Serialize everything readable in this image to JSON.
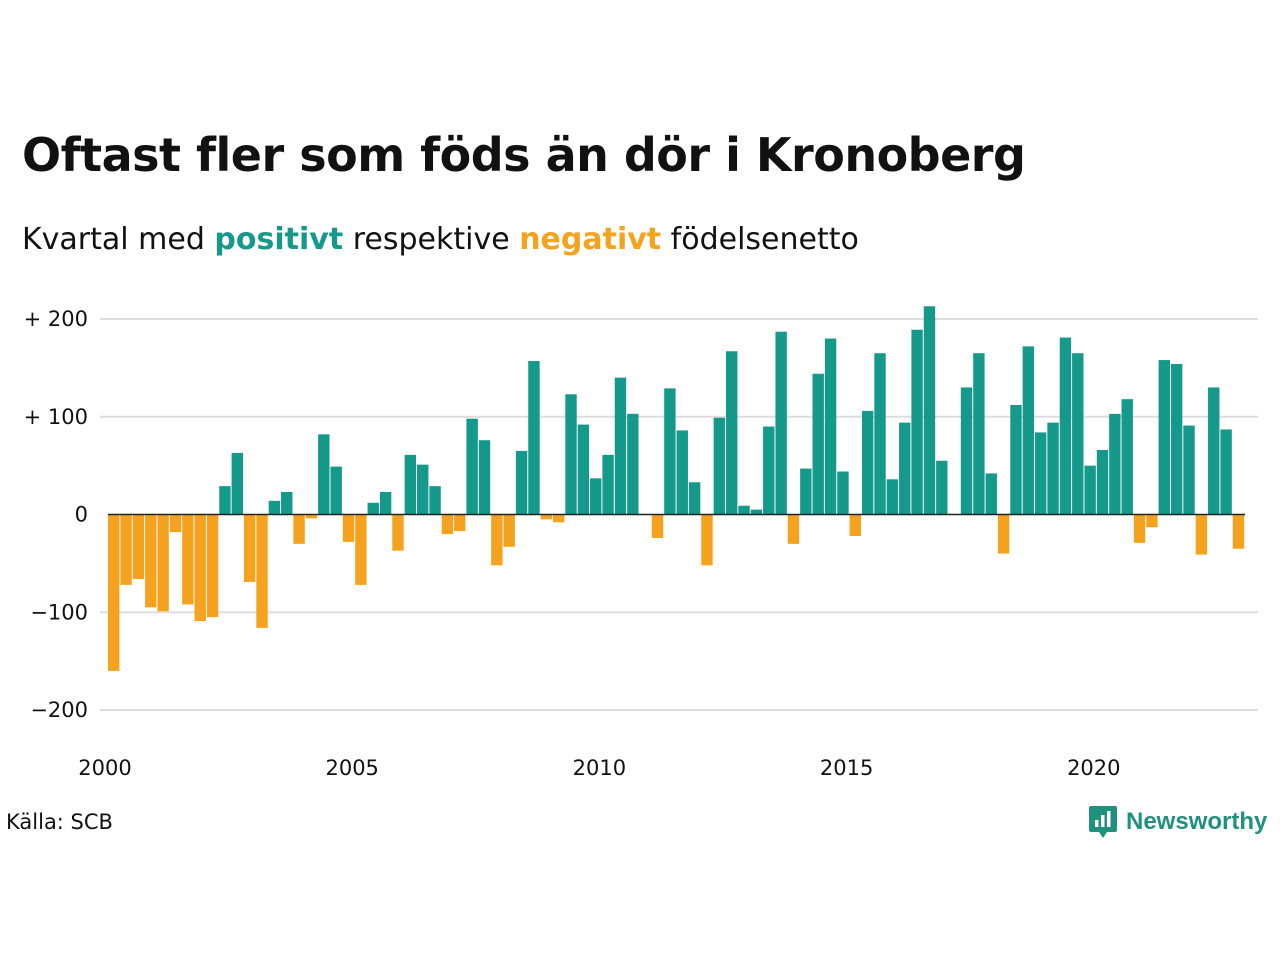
{
  "header": {
    "title": "Oftast fler som föds än dör i Kronoberg",
    "subtitle_pre": "Kvartal med ",
    "subtitle_pos": "positivt",
    "subtitle_mid": " respektive ",
    "subtitle_neg": "negativt",
    "subtitle_post": " födelsenetto"
  },
  "footer": {
    "source": "Källa: SCB",
    "brand": "Newsworthy"
  },
  "colors": {
    "positive": "#15998a",
    "negative": "#f5a31f",
    "grid": "#dddddd",
    "brand": "#21917f"
  },
  "chart_data": {
    "type": "bar",
    "start_year": 2000,
    "x_ticks": [
      "2000",
      "2005",
      "2010",
      "2015",
      "2020"
    ],
    "y_ticks": [
      {
        "value": 200,
        "label": "+ 200"
      },
      {
        "value": 100,
        "label": "+ 100"
      },
      {
        "value": 0,
        "label": "0"
      },
      {
        "value": -100,
        "label": "−100"
      },
      {
        "value": -200,
        "label": "−200"
      }
    ],
    "ylim": [
      -230,
      215
    ],
    "grid": true,
    "values": [
      -160,
      -72,
      -66,
      -95,
      -99,
      -18,
      -92,
      -109,
      -105,
      29,
      63,
      -69,
      -116,
      14,
      23,
      -30,
      -4,
      82,
      49,
      -28,
      -72,
      12,
      23,
      -37,
      61,
      51,
      29,
      -20,
      -17,
      98,
      76,
      -52,
      -33,
      65,
      157,
      -5,
      -8,
      123,
      92,
      37,
      61,
      140,
      103,
      0,
      -24,
      129,
      86,
      33,
      -52,
      99,
      167,
      9,
      5,
      90,
      187,
      -30,
      47,
      144,
      180,
      44,
      -22,
      106,
      165,
      36,
      94,
      189,
      213,
      55,
      0,
      130,
      165,
      42,
      -40,
      112,
      172,
      84,
      94,
      181,
      165,
      50,
      66,
      103,
      118,
      -29,
      -13,
      158,
      154,
      91,
      -41,
      130,
      87,
      -35
    ]
  }
}
